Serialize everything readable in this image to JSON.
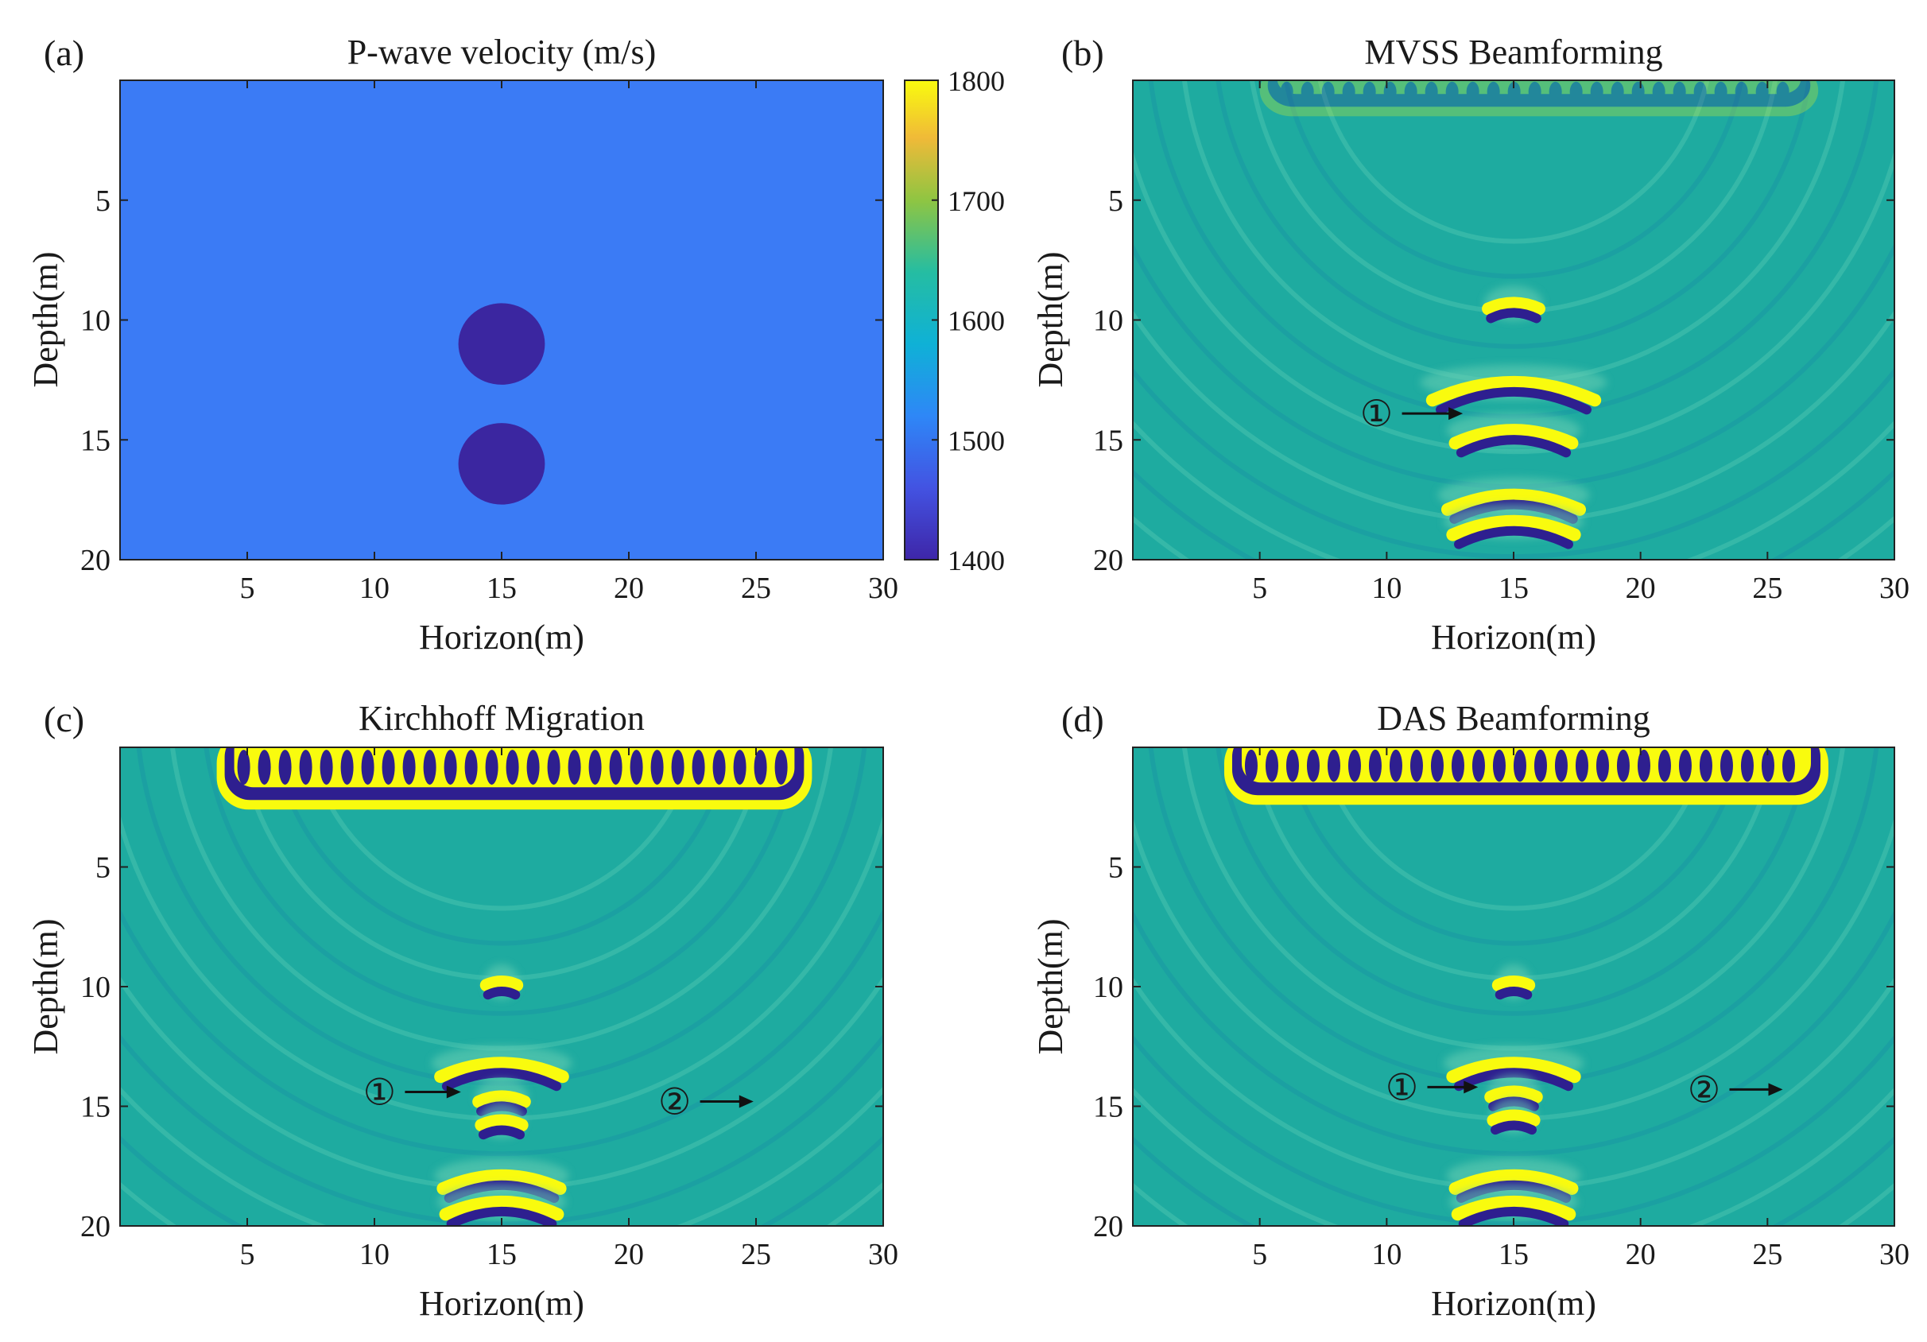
{
  "figure": {
    "colorbar": {
      "ticks": [
        "1800",
        "1700",
        "1600",
        "1500",
        "1400"
      ],
      "range": [
        1400,
        1800
      ]
    },
    "colormap": [
      "#3e26a8",
      "#2e87f7",
      "#35b779",
      "#20b6a2",
      "#d9bb37",
      "#f9fb0e"
    ],
    "background_colors": {
      "velocity_panel": "#3b7bf5",
      "inclusion": "#3b26a0",
      "image_panel": "#1eaba0"
    }
  },
  "chart_data": [
    {
      "type": "heatmap",
      "panel_label": "(a)",
      "title": "P-wave velocity (m/s)",
      "xlabel": "Horizon(m)",
      "ylabel": "Depth(m)",
      "xlim": [
        0,
        30
      ],
      "ylim": [
        20,
        0
      ],
      "xticks": [
        "5",
        "10",
        "15",
        "20",
        "25",
        "30"
      ],
      "yticks": [
        "5",
        "10",
        "15",
        "20"
      ],
      "background_value": 1480,
      "inclusions": [
        {
          "x": 15,
          "y": 11,
          "radius": 1.7,
          "value": 1400
        },
        {
          "x": 15,
          "y": 16,
          "radius": 1.7,
          "value": 1400
        }
      ],
      "annotations": []
    },
    {
      "type": "heatmap",
      "panel_label": "(b)",
      "title": "MVSS Beamforming",
      "xlabel": "Horizon(m)",
      "ylabel": "Depth(m)",
      "xlim": [
        0,
        30
      ],
      "ylim": [
        20,
        0
      ],
      "xticks": [
        "5",
        "10",
        "15",
        "20",
        "25",
        "30"
      ],
      "yticks": [
        "5",
        "10",
        "15",
        "20"
      ],
      "surface_artifact": {
        "x_start": 5,
        "x_end": 27,
        "depth": 1.5,
        "strength": 0.25
      },
      "reflectors": [
        {
          "x": 15,
          "y": 9.3,
          "half_width": 1.0
        },
        {
          "x": 15,
          "y": 12.6,
          "half_width": 3.2
        },
        {
          "x": 15,
          "y": 14.6,
          "half_width": 2.3
        },
        {
          "x": 15,
          "y": 17.3,
          "half_width": 2.6
        },
        {
          "x": 15,
          "y": 18.4,
          "half_width": 2.4
        }
      ],
      "annotations": [
        {
          "text": "①",
          "x": 9.6,
          "y": 13.9,
          "arrow_to_x": 13.0
        }
      ]
    },
    {
      "type": "heatmap",
      "panel_label": "(c)",
      "title": "Kirchhoff Migration",
      "xlabel": "Horizon(m)",
      "ylabel": "Depth(m)",
      "xlim": [
        0,
        30
      ],
      "ylim": [
        20,
        0
      ],
      "xticks": [
        "5",
        "10",
        "15",
        "20",
        "25",
        "30"
      ],
      "yticks": [
        "5",
        "10",
        "15",
        "20"
      ],
      "surface_artifact": {
        "x_start": 3.8,
        "x_end": 27.2,
        "depth": 2.6,
        "strength": 1.0
      },
      "reflectors": [
        {
          "x": 15,
          "y": 9.8,
          "half_width": 0.6
        },
        {
          "x": 15,
          "y": 13.2,
          "half_width": 2.4
        },
        {
          "x": 15,
          "y": 14.6,
          "half_width": 0.9
        },
        {
          "x": 15,
          "y": 15.6,
          "half_width": 0.8
        },
        {
          "x": 15,
          "y": 17.9,
          "half_width": 2.3
        },
        {
          "x": 15,
          "y": 19.0,
          "half_width": 2.2
        }
      ],
      "annotations": [
        {
          "text": "①",
          "x": 10.2,
          "y": 14.4,
          "arrow_to_x": 13.4
        },
        {
          "text": "②",
          "x": 21.8,
          "y": 14.8,
          "arrow_to_x": 24.9
        }
      ]
    },
    {
      "type": "heatmap",
      "panel_label": "(d)",
      "title": "DAS Beamforming",
      "xlabel": "Horizon(m)",
      "ylabel": "Depth(m)",
      "xlim": [
        0,
        30
      ],
      "ylim": [
        20,
        0
      ],
      "xticks": [
        "5",
        "10",
        "15",
        "20",
        "25",
        "30"
      ],
      "yticks": [
        "5",
        "10",
        "15",
        "20"
      ],
      "surface_artifact": {
        "x_start": 3.6,
        "x_end": 27.4,
        "depth": 2.4,
        "strength": 1.0
      },
      "reflectors": [
        {
          "x": 15,
          "y": 9.8,
          "half_width": 0.6
        },
        {
          "x": 15,
          "y": 13.2,
          "half_width": 2.4
        },
        {
          "x": 15,
          "y": 14.4,
          "half_width": 0.9
        },
        {
          "x": 15,
          "y": 15.4,
          "half_width": 0.8
        },
        {
          "x": 15,
          "y": 17.9,
          "half_width": 2.3
        },
        {
          "x": 15,
          "y": 19.0,
          "half_width": 2.2
        }
      ],
      "annotations": [
        {
          "text": "①",
          "x": 10.6,
          "y": 14.2,
          "arrow_to_x": 13.6
        },
        {
          "text": "②",
          "x": 22.5,
          "y": 14.3,
          "arrow_to_x": 25.6
        }
      ]
    }
  ]
}
